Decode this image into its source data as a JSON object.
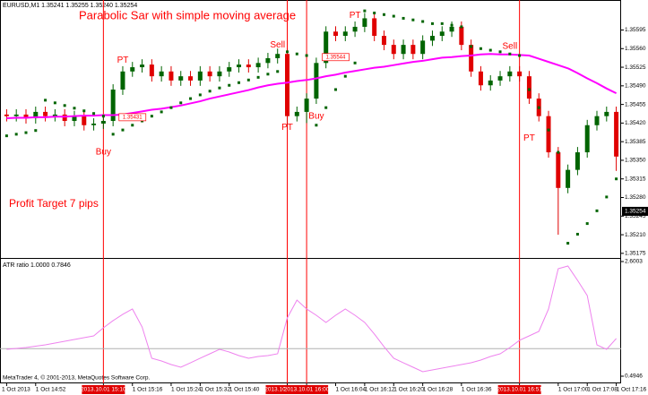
{
  "chart_data": [
    {
      "type": "candlestick",
      "title": "Parabolic Sar with simple moving average",
      "subtitle": "EURUSD,M1  1.35241 1.35255 1.35240 1.35254",
      "note": "Profit Target 7 pips",
      "categories": [
        "1 Oct 2013",
        null,
        null,
        "1 Oct 14:52",
        null,
        null,
        null,
        null,
        null,
        null,
        "2013.10.01 15:10",
        null,
        null,
        "1 Oct 15:16",
        null,
        null,
        null,
        "1 Oct 15:24",
        null,
        null,
        "1 Oct 15:32",
        null,
        null,
        "1 Oct 15:40",
        null,
        null,
        null,
        null,
        null,
        "2013.10.01 15:53",
        null,
        "2013.10.01 16:00",
        null,
        null,
        "1 Oct 16:04",
        null,
        null,
        "1 Oct 16:12",
        null,
        null,
        "1 Oct 16:20",
        null,
        null,
        "1 Oct 16:28",
        null,
        null,
        null,
        "1 Oct 16:36",
        null,
        null,
        null,
        null,
        null,
        "2013.10.01 16:51",
        null,
        null,
        null,
        "1 Oct 17:00",
        null,
        null,
        "1 Oct 17:08",
        null,
        null,
        "1 Oct 17:16"
      ],
      "open": [
        1.35436,
        1.35433,
        1.35436,
        1.35429,
        1.35441,
        1.35433,
        1.35436,
        1.35424,
        1.35433,
        1.35416,
        1.35419,
        1.35424,
        1.35483,
        1.35517,
        1.35525,
        1.3553,
        1.35508,
        1.35517,
        1.355,
        1.35508,
        1.355,
        1.35517,
        1.35508,
        1.35517,
        1.35525,
        1.3553,
        1.35525,
        1.35533,
        1.35542,
        1.3555,
        1.35433,
        1.35441,
        1.35466,
        1.35533,
        1.35592,
        1.35584,
        1.35592,
        1.35601,
        1.35617,
        1.35584,
        1.35567,
        1.3555,
        1.35567,
        1.3555,
        1.35575,
        1.35584,
        1.35592,
        1.35601,
        1.35567,
        1.35517,
        1.35491,
        1.355,
        1.35508,
        1.35517,
        1.35508,
        1.35466,
        1.35433,
        1.35365,
        1.35298,
        1.35332,
        1.35365,
        1.35416,
        1.35433,
        1.35441
      ],
      "high": [
        1.35446,
        1.35446,
        1.35446,
        1.35451,
        1.35451,
        1.35446,
        1.35446,
        1.35443,
        1.35443,
        1.35429,
        1.35434,
        1.35493,
        1.35527,
        1.35535,
        1.3554,
        1.3554,
        1.35527,
        1.35527,
        1.35518,
        1.35518,
        1.35527,
        1.35527,
        1.35527,
        1.35535,
        1.3554,
        1.3554,
        1.35543,
        1.35552,
        1.3556,
        1.3556,
        1.35451,
        1.35476,
        1.35543,
        1.35602,
        1.35602,
        1.35602,
        1.35611,
        1.35627,
        1.35627,
        1.35594,
        1.35577,
        1.35577,
        1.35577,
        1.35585,
        1.35594,
        1.35602,
        1.35611,
        1.35611,
        1.35577,
        1.35527,
        1.3551,
        1.35518,
        1.35527,
        1.35527,
        1.35518,
        1.35476,
        1.35443,
        1.35375,
        1.35342,
        1.35375,
        1.35426,
        1.35443,
        1.35451,
        1.35451
      ],
      "low": [
        1.35423,
        1.35423,
        1.35419,
        1.35419,
        1.35423,
        1.35423,
        1.35414,
        1.35414,
        1.35406,
        1.35406,
        1.35409,
        1.35414,
        1.35473,
        1.35507,
        1.35515,
        1.35498,
        1.35498,
        1.3549,
        1.3549,
        1.3549,
        1.3549,
        1.35498,
        1.35498,
        1.35507,
        1.35515,
        1.35515,
        1.35515,
        1.35523,
        1.35532,
        1.3541,
        1.35423,
        1.3542,
        1.35456,
        1.35523,
        1.35574,
        1.35574,
        1.35582,
        1.35591,
        1.35574,
        1.35557,
        1.3554,
        1.3554,
        1.3554,
        1.3554,
        1.35565,
        1.35574,
        1.35582,
        1.35557,
        1.35507,
        1.35481,
        1.35481,
        1.3549,
        1.35498,
        1.35498,
        1.35456,
        1.35423,
        1.35355,
        1.3521,
        1.35288,
        1.35322,
        1.35355,
        1.35406,
        1.35423,
        1.3533
      ],
      "close": [
        1.35433,
        1.35436,
        1.35429,
        1.35441,
        1.35433,
        1.35436,
        1.35424,
        1.35433,
        1.35416,
        1.35419,
        1.35424,
        1.35483,
        1.35517,
        1.35525,
        1.3553,
        1.35508,
        1.35517,
        1.355,
        1.35508,
        1.355,
        1.35517,
        1.35508,
        1.35517,
        1.35525,
        1.3553,
        1.35525,
        1.35533,
        1.35542,
        1.3555,
        1.35433,
        1.35441,
        1.35466,
        1.35533,
        1.35592,
        1.35584,
        1.35592,
        1.35601,
        1.35617,
        1.35584,
        1.35567,
        1.3555,
        1.35567,
        1.3555,
        1.35575,
        1.35584,
        1.35592,
        1.35601,
        1.35567,
        1.35517,
        1.35491,
        1.355,
        1.35508,
        1.35517,
        1.35508,
        1.35466,
        1.35433,
        1.35365,
        1.35298,
        1.35332,
        1.35365,
        1.35416,
        1.35433,
        1.35441,
        1.35357
      ],
      "up_color": "#006400",
      "down_color": "#e00000",
      "series": [
        {
          "style": "line",
          "color": "#ff00ff",
          "values": [
            1.35429,
            1.3543,
            1.3543,
            1.35431,
            1.35431,
            1.35432,
            1.35432,
            1.35433,
            1.35434,
            1.35434,
            1.35435,
            1.35435,
            1.35436,
            1.35439,
            1.35442,
            1.35445,
            1.35447,
            1.3545,
            1.35453,
            1.35457,
            1.35461,
            1.35466,
            1.3547,
            1.35474,
            1.35478,
            1.35482,
            1.35487,
            1.35491,
            1.35494,
            1.35496,
            1.35499,
            1.35501,
            1.35504,
            1.35508,
            1.35511,
            1.35515,
            1.35518,
            1.35521,
            1.35524,
            1.35526,
            1.35529,
            1.35532,
            1.35535,
            1.35537,
            1.3554,
            1.35543,
            1.35544,
            1.35546,
            1.35547,
            1.35549,
            1.3555,
            1.35549,
            1.35549,
            1.35548,
            1.35547,
            1.35541,
            1.35535,
            1.35529,
            1.35523,
            1.35514,
            1.35504,
            1.35495,
            1.35485,
            1.35476
          ]
        },
        {
          "style": "dots",
          "color": "#006400",
          "values": [
            1.35396,
            1.35399,
            1.35402,
            1.35406,
            1.35463,
            1.35458,
            1.35453,
            1.35448,
            1.35443,
            1.35438,
            1.35433,
            1.35399,
            1.35407,
            1.35416,
            1.35424,
            1.35433,
            1.35441,
            1.35449,
            1.35458,
            1.35466,
            1.35473,
            1.3548,
            1.35486,
            1.35491,
            1.35496,
            1.35501,
            1.35506,
            1.35512,
            1.35517,
            1.35554,
            1.3555,
            1.35547,
            1.35416,
            1.35449,
            1.35483,
            1.35508,
            1.35533,
            1.35631,
            1.35627,
            1.35624,
            1.35621,
            1.35617,
            1.35614,
            1.35611,
            1.35607,
            1.35607,
            1.35604,
            1.35601,
            1.35564,
            1.3556,
            1.35557,
            1.35554,
            1.3555,
            1.35547,
            1.35483,
            1.35449,
            1.35407,
            1.35365,
            1.35194,
            1.35211,
            1.35231,
            1.35255,
            1.35281,
            1.35315
          ]
        }
      ],
      "annotations": [
        {
          "text": "Buy",
          "x": 10,
          "y": 1.35365
        },
        {
          "text": "PT",
          "x": 12,
          "y": 1.35538
        },
        {
          "text": "Sell",
          "x": 28,
          "y": 1.35567
        },
        {
          "text": "PT",
          "x": 29,
          "y": 1.35412
        },
        {
          "text": "Buy",
          "x": 32,
          "y": 1.35433
        },
        {
          "text": "PT",
          "x": 36,
          "y": 1.35622
        },
        {
          "text": "Sell",
          "x": 52,
          "y": 1.35564
        },
        {
          "text": "PT",
          "x": 54,
          "y": 1.35391
        }
      ],
      "price_tags": [
        {
          "x": 13,
          "value": 1.35431
        },
        {
          "x": 34,
          "value": 1.35544
        }
      ],
      "current_price": 1.35254,
      "vertical_lines": [
        10,
        29,
        31,
        53
      ],
      "ylim": [
        1.35168,
        1.35643
      ],
      "yticks": [
        1.35175,
        {
          "value": 1.3521,
          "label": "1.35210"
        },
        1.35245,
        {
          "value": 1.3528,
          "label": "1.35280"
        },
        1.35315,
        {
          "value": 1.3535,
          "label": "1.35350"
        },
        1.35385,
        {
          "value": 1.3542,
          "label": "1.35420"
        },
        1.35455,
        {
          "value": 1.3549,
          "label": "1.35490"
        },
        1.35525,
        {
          "value": 1.3556,
          "label": "1.35560"
        },
        1.35595
      ],
      "grid": false
    },
    {
      "type": "line",
      "title": "ATR ratio 1.0000 0.7846",
      "footer": "MetaTrader 4, © 2001-2013, MetaQuotes Software Corp.",
      "color": "#ee82ee",
      "values": [
        0.988,
        1.005,
        1.021,
        1.046,
        1.07,
        1.103,
        1.136,
        1.169,
        1.202,
        1.235,
        1.383,
        1.515,
        1.63,
        1.729,
        1.399,
        0.824,
        0.774,
        0.708,
        0.659,
        0.741,
        0.824,
        0.906,
        0.988,
        0.939,
        0.873,
        0.824,
        0.857,
        0.873,
        0.906,
        1.564,
        1.893,
        1.729,
        1.613,
        1.482,
        1.613,
        1.729,
        1.613,
        1.482,
        1.268,
        1.037,
        0.824,
        0.741,
        0.659,
        0.577,
        0.61,
        0.643,
        0.676,
        0.708,
        0.741,
        0.791,
        0.857,
        0.906,
        1.021,
        1.153,
        1.235,
        1.317,
        1.729,
        2.469,
        2.518,
        2.255,
        1.976,
        1.07,
        0.988,
        1.186
      ],
      "level": 1,
      "ylim": [
        0.4946,
        2.6003
      ],
      "yticks": [
        0.4946,
        2.6003
      ],
      "grid": false
    }
  ]
}
